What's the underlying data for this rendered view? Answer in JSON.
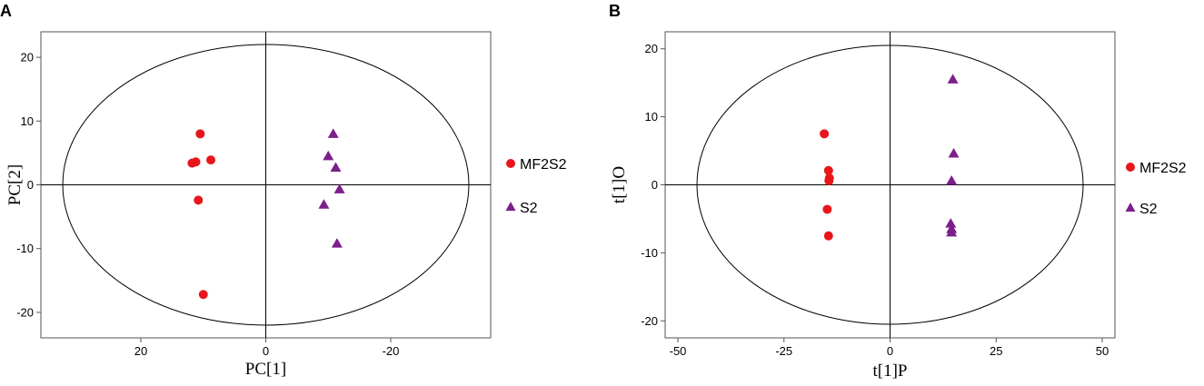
{
  "chart_data": [
    {
      "type": "scatter",
      "panel": "A",
      "xlabel": "PC[1]",
      "ylabel": "PC[2]",
      "xlim": [
        -36,
        36
      ],
      "x_reversed": true,
      "ylim": [
        -24,
        24
      ],
      "x_ticks": [
        20,
        0,
        -20
      ],
      "x_tick_labels": [
        "20",
        "0",
        "-20"
      ],
      "y_ticks": [
        20,
        10,
        0,
        -10,
        -20
      ],
      "ellipse": {
        "cx": 0,
        "cy": 0,
        "rx": 32.5,
        "ry": 22
      },
      "legend_position": "right",
      "series": [
        {
          "name": "MF2S2",
          "marker": "circle",
          "color": "#e8161b",
          "points": [
            [
              10.5,
              8
            ],
            [
              11.2,
              3.6
            ],
            [
              11.8,
              3.4
            ],
            [
              8.8,
              3.9
            ],
            [
              10.8,
              -2.4
            ],
            [
              10,
              -17.2
            ]
          ]
        },
        {
          "name": "S2",
          "marker": "triangle",
          "color": "#7b1f8a",
          "points": [
            [
              -10.8,
              8
            ],
            [
              -10,
              4.5
            ],
            [
              -11.2,
              2.7
            ],
            [
              -11.8,
              -0.7
            ],
            [
              -9.3,
              -3.1
            ],
            [
              -11.4,
              -9.2
            ]
          ]
        }
      ]
    },
    {
      "type": "scatter",
      "panel": "B",
      "xlabel": "t[1]P",
      "ylabel": "t[1]O",
      "xlim": [
        -53,
        53
      ],
      "x_reversed": false,
      "ylim": [
        -22.5,
        22.5
      ],
      "x_ticks": [
        -50,
        -25,
        0,
        25,
        50
      ],
      "y_ticks": [
        20,
        10,
        0,
        -10,
        -20
      ],
      "ellipse": {
        "cx": 0,
        "cy": 0,
        "rx": 45.5,
        "ry": 20.5
      },
      "legend_position": "right",
      "series": [
        {
          "name": "MF2S2",
          "marker": "circle",
          "color": "#e8161b",
          "points": [
            [
              -15.5,
              7.5
            ],
            [
              -14.5,
              2.1
            ],
            [
              -14.3,
              1
            ],
            [
              -14.4,
              0.6
            ],
            [
              -14.8,
              -3.6
            ],
            [
              -14.5,
              -7.5
            ]
          ]
        },
        {
          "name": "S2",
          "marker": "triangle",
          "color": "#7b1f8a",
          "points": [
            [
              14.8,
              15.5
            ],
            [
              15,
              4.6
            ],
            [
              14.5,
              0.6
            ],
            [
              14.3,
              -5.7
            ],
            [
              14.5,
              -6.5
            ],
            [
              14.5,
              -7
            ]
          ]
        }
      ]
    }
  ]
}
